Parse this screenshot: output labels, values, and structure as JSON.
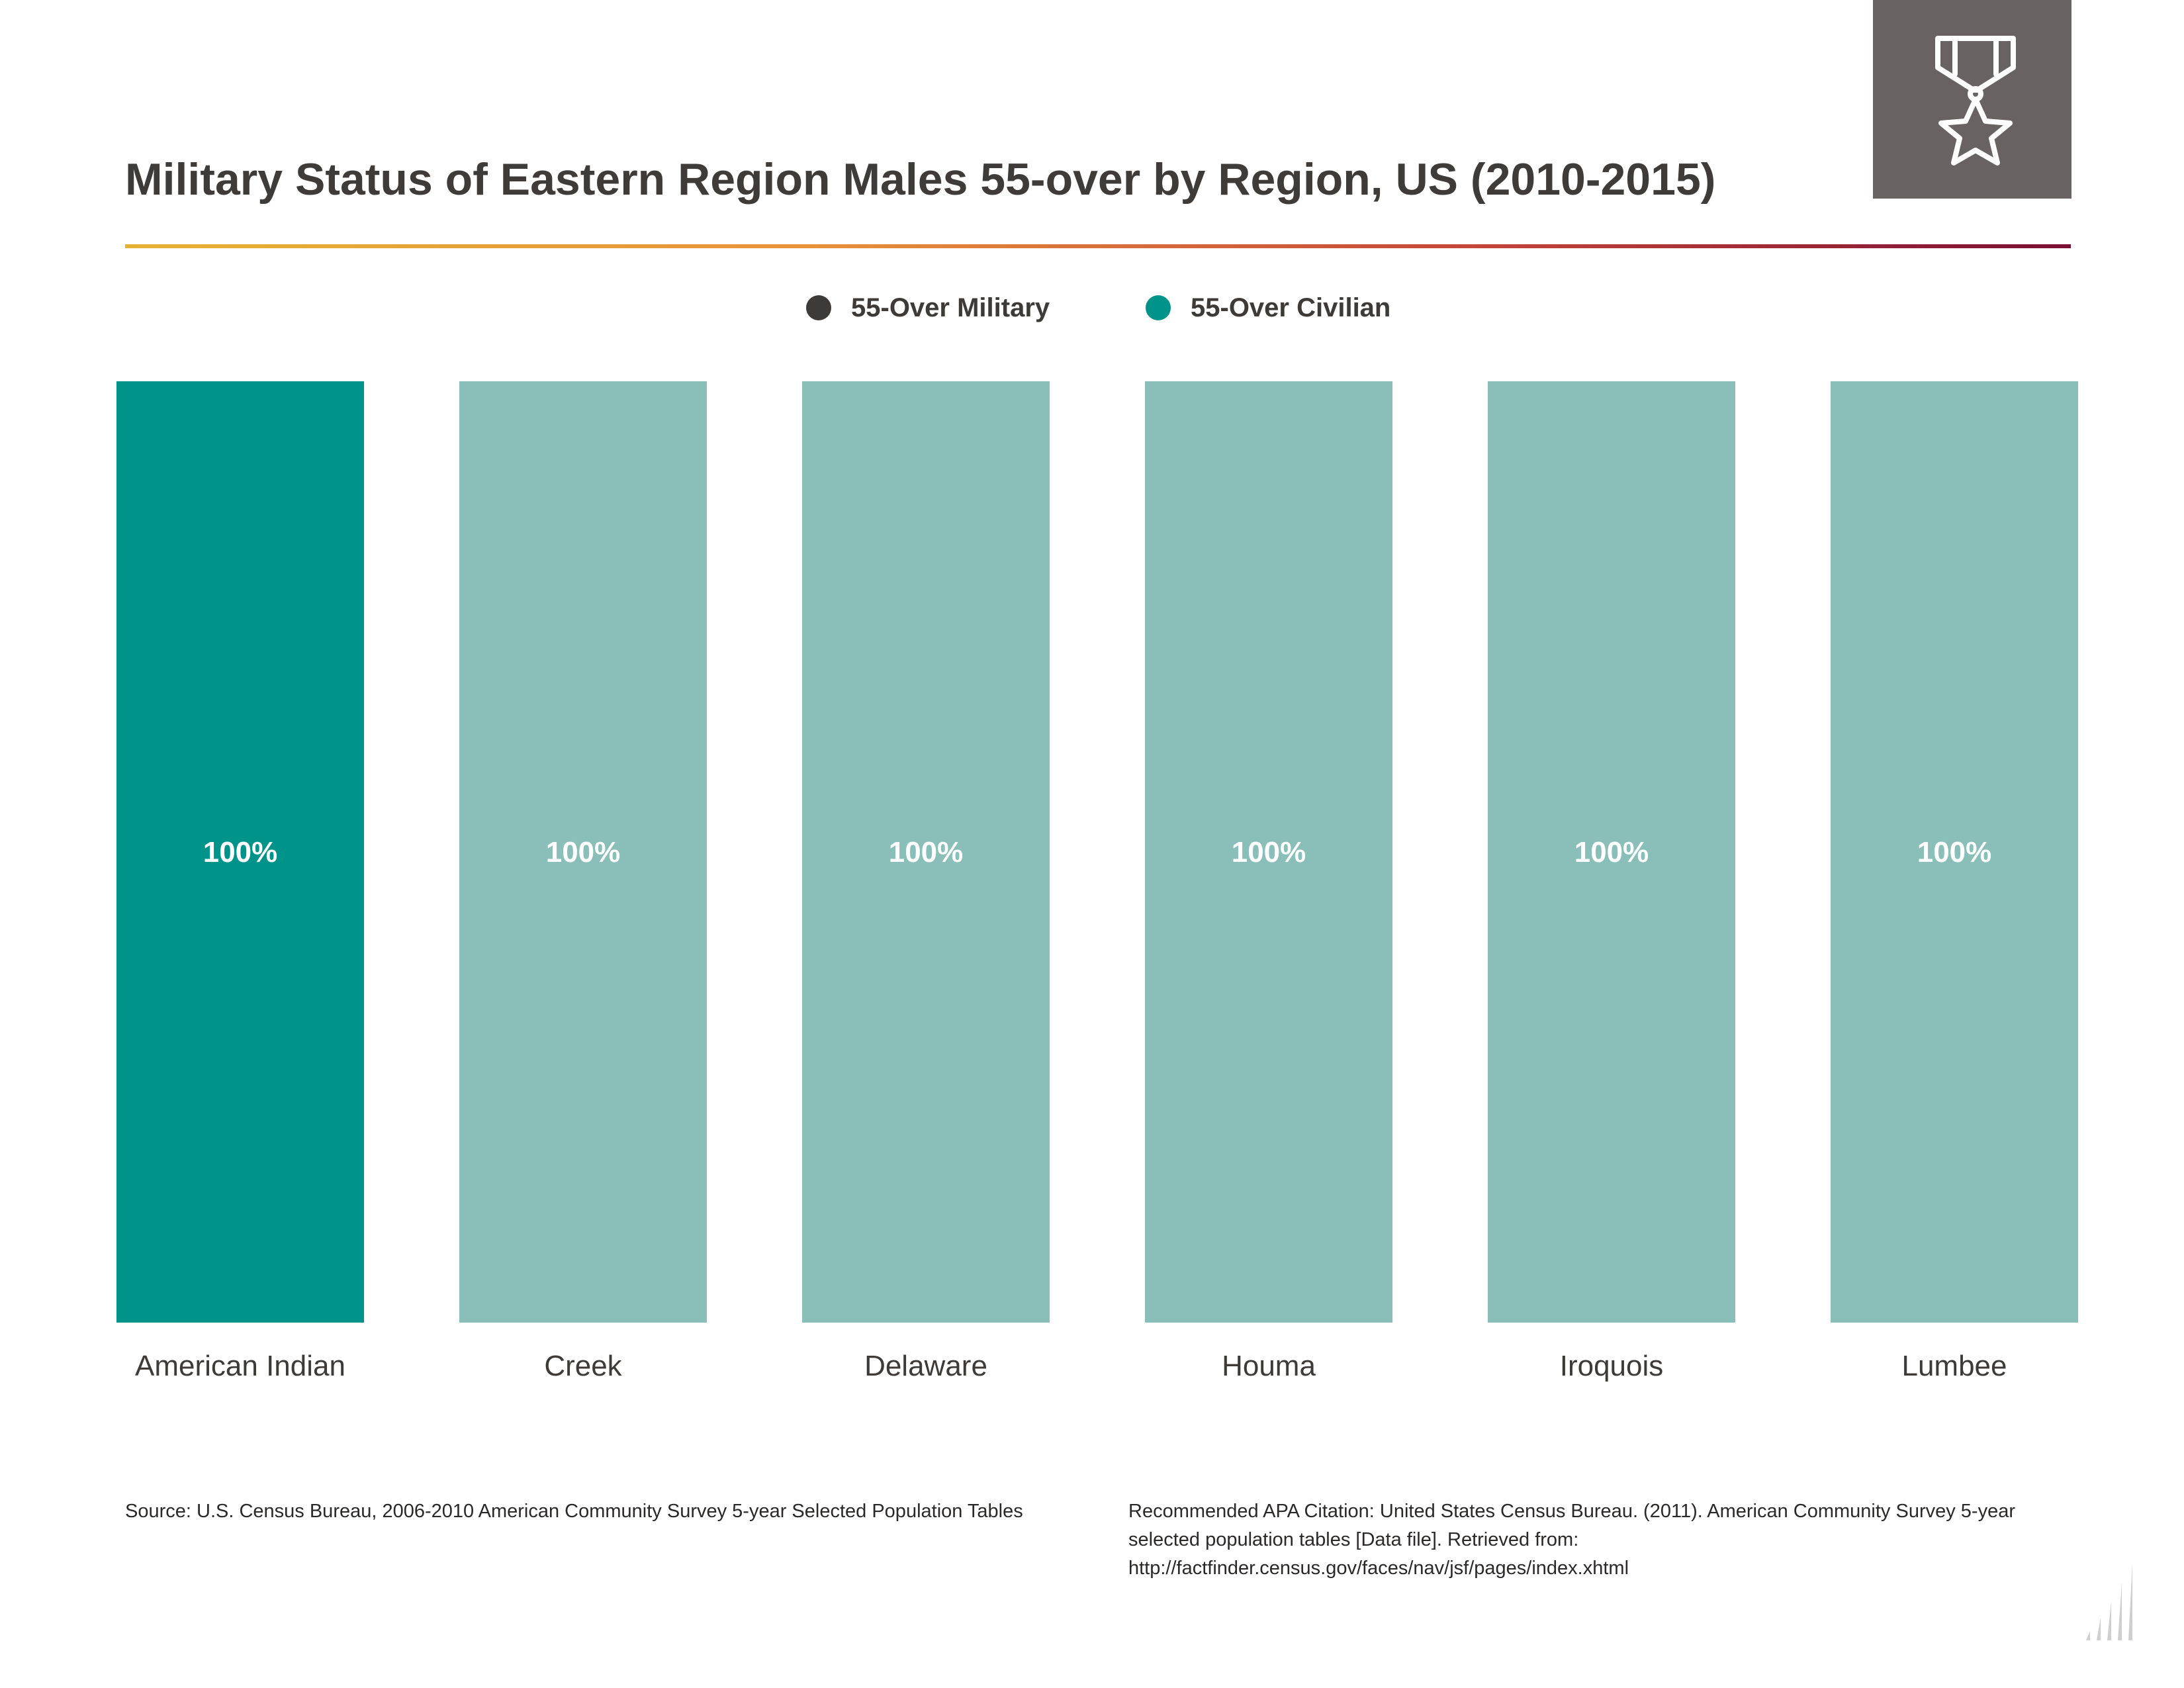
{
  "title": "Military Status of Eastern Region Males 55-over by Region, US (2010-2015)",
  "badge": {
    "icon": "medal-star-icon",
    "background": "#686362"
  },
  "legend": [
    {
      "label": "55-Over Military",
      "color": "#3d3a38"
    },
    {
      "label": "55-Over Civilian",
      "color": "#00938a"
    }
  ],
  "chart_data": {
    "type": "bar",
    "stacked": true,
    "categories": [
      "American Indian",
      "Creek",
      "Delaware",
      "Houma",
      "Iroquois",
      "Lumbee"
    ],
    "series": [
      {
        "name": "55-Over Military",
        "values": [
          0,
          0,
          0,
          0,
          0,
          0
        ],
        "color": "#3d3a38"
      },
      {
        "name": "55-Over Civilian",
        "values": [
          100,
          100,
          100,
          100,
          100,
          100
        ],
        "color": "#00938a",
        "category_colors": [
          "#00938a",
          "#8abeb8",
          "#8abeb8",
          "#8abeb8",
          "#8abeb8",
          "#8abeb8"
        ]
      }
    ],
    "data_labels": [
      "100%",
      "100%",
      "100%",
      "100%",
      "100%",
      "100%"
    ],
    "ylim": [
      0,
      100
    ],
    "legend_position": "top-center",
    "grid": false
  },
  "footnotes": {
    "source": "Source:  U.S. Census Bureau, 2006-2010 American Community Survey 5-year Selected Population Tables",
    "citation": "Recommended APA Citation: United States Census Bureau. (2011). American Community Survey 5-year selected population tables [Data file]. Retrieved from: http://factfinder.census.gov/faces/nav/jsf/pages/index.xhtml"
  },
  "corner_icon": "bar-chart-logo-icon"
}
